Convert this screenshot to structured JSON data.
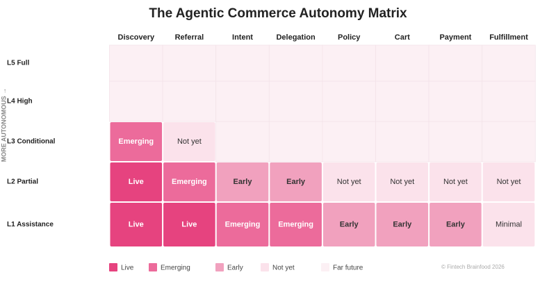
{
  "title": "The Agentic Commerce Autonomy Matrix",
  "axis_label": "MORE AUTONOMOUS →",
  "columns": [
    "Discovery",
    "Referral",
    "Intent",
    "Delegation",
    "Policy",
    "Cart",
    "Payment",
    "Fulfillment"
  ],
  "legend": [
    {
      "label": "Live",
      "color": "#e6437f"
    },
    {
      "label": "Emerging",
      "color": "#ec6b9b"
    },
    {
      "label": "Early",
      "color": "#f1a1be"
    },
    {
      "label": "Not yet",
      "color": "#fbe2eb"
    },
    {
      "label": "Far future",
      "color": "#fcf0f4"
    }
  ],
  "rows": [
    {
      "label": "L5 Full",
      "cells": [
        {
          "legend": 4
        },
        {
          "legend": 4
        },
        {
          "legend": 4
        },
        {
          "legend": 4
        },
        {
          "legend": 4
        },
        {
          "legend": 4
        },
        {
          "legend": 4
        },
        {
          "legend": 4
        }
      ]
    },
    {
      "label": "L4 High",
      "cells": [
        {
          "legend": 4
        },
        {
          "legend": 4
        },
        {
          "legend": 4
        },
        {
          "legend": 4
        },
        {
          "legend": 4
        },
        {
          "legend": 4
        },
        {
          "legend": 4
        },
        {
          "legend": 4
        }
      ]
    },
    {
      "label": "L3 Conditional",
      "cells": [
        {
          "label": "Emerging",
          "legend": 1
        },
        {
          "label": "Not yet",
          "legend": 3
        },
        {
          "legend": 4
        },
        {
          "legend": 4
        },
        {
          "legend": 4
        },
        {
          "legend": 4
        },
        {
          "legend": 4
        },
        {
          "legend": 4
        }
      ]
    },
    {
      "label": "L2 Partial",
      "cells": [
        {
          "label": "Live",
          "legend": 0
        },
        {
          "label": "Emerging",
          "legend": 1
        },
        {
          "label": "Early",
          "legend": 2
        },
        {
          "label": "Early",
          "legend": 2
        },
        {
          "label": "Not yet",
          "legend": 3
        },
        {
          "label": "Not yet",
          "legend": 3
        },
        {
          "label": "Not yet",
          "legend": 3
        },
        {
          "label": "Not yet",
          "legend": 3
        }
      ]
    },
    {
      "label": "L1 Assistance",
      "cells": [
        {
          "label": "Live",
          "legend": 0
        },
        {
          "label": "Live",
          "legend": 0
        },
        {
          "label": "Emerging",
          "legend": 1
        },
        {
          "label": "Emerging",
          "legend": 1
        },
        {
          "label": "Early",
          "legend": 2
        },
        {
          "label": "Early",
          "legend": 2
        },
        {
          "label": "Early",
          "legend": 2
        },
        {
          "label": "Minimal",
          "legend": 3
        }
      ]
    }
  ],
  "credit": "© Fintech Brainfood 2026"
}
